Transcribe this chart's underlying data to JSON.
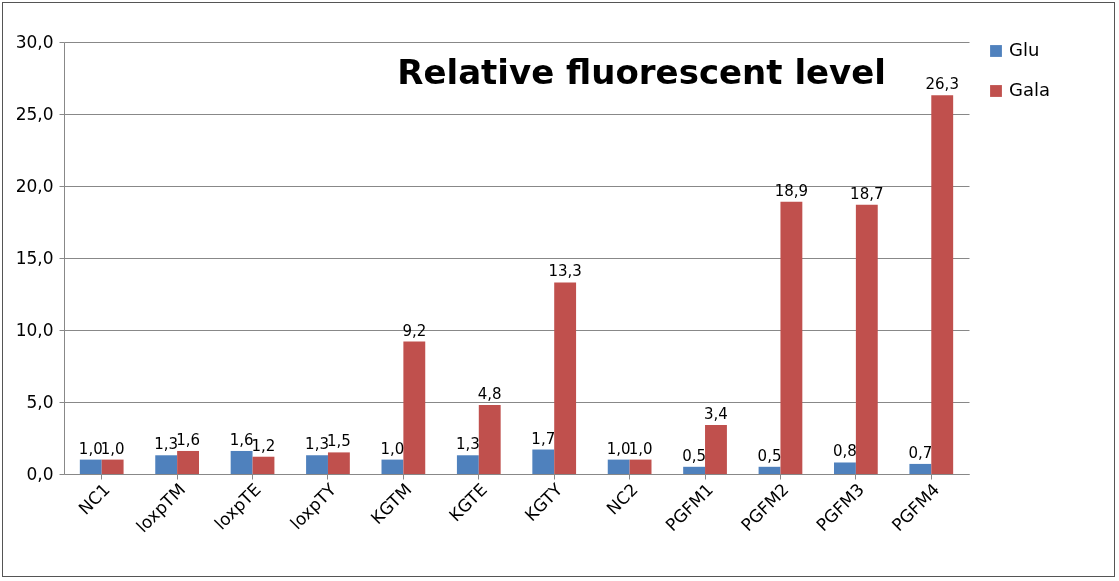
{
  "chart_data": {
    "type": "bar",
    "title": "Relative fluorescent level",
    "categories": [
      "NC1",
      "loxpTM",
      "loxpTE",
      "loxpTY",
      "KGTM",
      "KGTE",
      "KGTY",
      "NC2",
      "PGFM1",
      "PGFM2",
      "PGFM3",
      "PGFM4"
    ],
    "series": [
      {
        "name": "Glu",
        "color": "#4f81bd",
        "values": [
          1.0,
          1.3,
          1.6,
          1.3,
          1.0,
          1.3,
          1.7,
          1.0,
          0.5,
          0.5,
          0.8,
          0.7
        ],
        "value_labels": [
          "1,0",
          "1,3",
          "1,6",
          "1,3",
          "1,0",
          "1,3",
          "1,7",
          "1,0",
          "0,5",
          "0,5",
          "0,8",
          "0,7"
        ]
      },
      {
        "name": "Gala",
        "color": "#c0504d",
        "values": [
          1.0,
          1.6,
          1.2,
          1.5,
          9.2,
          4.8,
          13.3,
          1.0,
          3.4,
          18.9,
          18.7,
          26.3
        ],
        "value_labels": [
          "1,0",
          "1,6",
          "1,2",
          "1,5",
          "9,2",
          "4,8",
          "13,3",
          "1,0",
          "3,4",
          "18,9",
          "18,7",
          "26,3"
        ]
      }
    ],
    "ylim": [
      0,
      30
    ],
    "yticks": [
      {
        "value": 0,
        "label": "0,0"
      },
      {
        "value": 5,
        "label": "5,0"
      },
      {
        "value": 10,
        "label": "10,0"
      },
      {
        "value": 15,
        "label": "15,0"
      },
      {
        "value": 20,
        "label": "20,0"
      },
      {
        "value": 25,
        "label": "25,0"
      },
      {
        "value": 30,
        "label": "30,0"
      }
    ],
    "grid": "y",
    "legend": "right"
  }
}
